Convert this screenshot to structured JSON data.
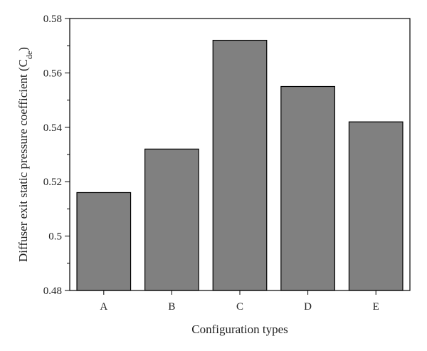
{
  "chart_data": {
    "type": "bar",
    "categories": [
      "A",
      "B",
      "C",
      "D",
      "E"
    ],
    "values": [
      0.516,
      0.532,
      0.572,
      0.555,
      0.542
    ],
    "xlabel": "Configuration types",
    "ylabel_main": "Diffuser exit static pressure coefficient (C",
    "ylabel_sub": "de",
    "ylabel_end": ")",
    "ylim": [
      0.48,
      0.58
    ],
    "yticks": [
      0.48,
      0.5,
      0.52,
      0.54,
      0.56,
      0.58
    ],
    "ytick_labels": [
      "0.48",
      "0.5",
      "0.52",
      "0.54",
      "0.56",
      "0.58"
    ],
    "grid": false,
    "bar_color": "#808080",
    "edge_color": "#000000"
  }
}
